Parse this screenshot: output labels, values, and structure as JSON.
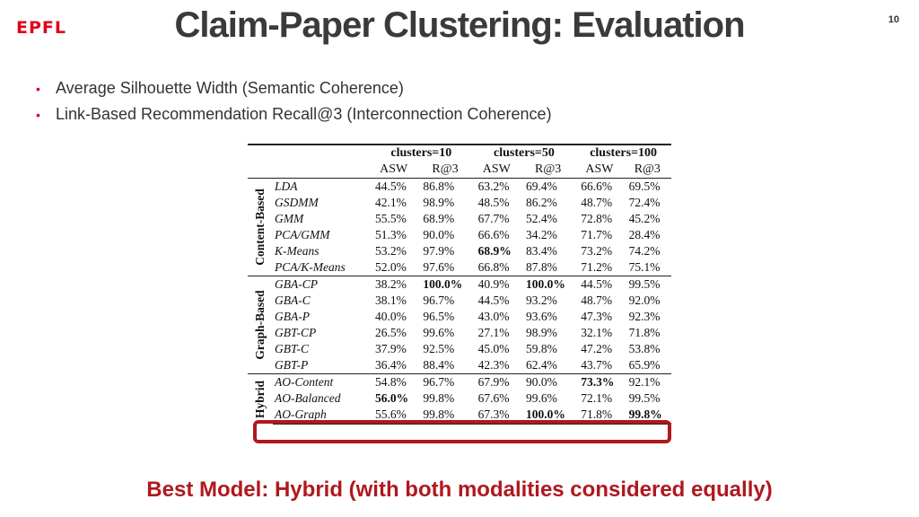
{
  "logo": "EPFL",
  "title": "Claim-Paper Clustering: Evaluation",
  "page_number": "10",
  "bullets": [
    "Average Silhouette Width (Semantic Coherence)",
    "Link-Based Recommendation Recall@3 (Interconnection Coherence)"
  ],
  "table": {
    "cluster_headers": [
      "clusters=10",
      "clusters=50",
      "clusters=100"
    ],
    "sub_headers": [
      "ASW",
      "R@3",
      "ASW",
      "R@3",
      "ASW",
      "R@3"
    ],
    "groups": [
      {
        "name": "Content-Based",
        "rows": [
          {
            "model": "LDA",
            "values": [
              "44.5%",
              "86.8%",
              "63.2%",
              "69.4%",
              "66.6%",
              "69.5%"
            ],
            "bold": []
          },
          {
            "model": "GSDMM",
            "values": [
              "42.1%",
              "98.9%",
              "48.5%",
              "86.2%",
              "48.7%",
              "72.4%"
            ],
            "bold": []
          },
          {
            "model": "GMM",
            "values": [
              "55.5%",
              "68.9%",
              "67.7%",
              "52.4%",
              "72.8%",
              "45.2%"
            ],
            "bold": []
          },
          {
            "model": "PCA/GMM",
            "values": [
              "51.3%",
              "90.0%",
              "66.6%",
              "34.2%",
              "71.7%",
              "28.4%"
            ],
            "bold": []
          },
          {
            "model": "K-Means",
            "values": [
              "53.2%",
              "97.9%",
              "68.9%",
              "83.4%",
              "73.2%",
              "74.2%"
            ],
            "bold": [
              2
            ]
          },
          {
            "model": "PCA/K-Means",
            "values": [
              "52.0%",
              "97.6%",
              "66.8%",
              "87.8%",
              "71.2%",
              "75.1%"
            ],
            "bold": []
          }
        ]
      },
      {
        "name": "Graph-Based",
        "rows": [
          {
            "model": "GBA-CP",
            "values": [
              "38.2%",
              "100.0%",
              "40.9%",
              "100.0%",
              "44.5%",
              "99.5%"
            ],
            "bold": [
              1,
              3
            ]
          },
          {
            "model": "GBA-C",
            "values": [
              "38.1%",
              "96.7%",
              "44.5%",
              "93.2%",
              "48.7%",
              "92.0%"
            ],
            "bold": []
          },
          {
            "model": "GBA-P",
            "values": [
              "40.0%",
              "96.5%",
              "43.0%",
              "93.6%",
              "47.3%",
              "92.3%"
            ],
            "bold": []
          },
          {
            "model": "GBT-CP",
            "values": [
              "26.5%",
              "99.6%",
              "27.1%",
              "98.9%",
              "32.1%",
              "71.8%"
            ],
            "bold": []
          },
          {
            "model": "GBT-C",
            "values": [
              "37.9%",
              "92.5%",
              "45.0%",
              "59.8%",
              "47.2%",
              "53.8%"
            ],
            "bold": []
          },
          {
            "model": "GBT-P",
            "values": [
              "36.4%",
              "88.4%",
              "42.3%",
              "62.4%",
              "43.7%",
              "65.9%"
            ],
            "bold": []
          }
        ]
      },
      {
        "name": "Hybrid",
        "rows": [
          {
            "model": "AO-Content",
            "values": [
              "54.8%",
              "96.7%",
              "67.9%",
              "90.0%",
              "73.3%",
              "92.1%"
            ],
            "bold": [
              4
            ]
          },
          {
            "model": "AO-Balanced",
            "values": [
              "56.0%",
              "99.8%",
              "67.6%",
              "99.6%",
              "72.1%",
              "99.5%"
            ],
            "bold": [
              0
            ]
          },
          {
            "model": "AO-Graph",
            "values": [
              "55.6%",
              "99.8%",
              "67.3%",
              "100.0%",
              "71.8%",
              "99.8%"
            ],
            "bold": [
              3,
              5
            ]
          }
        ]
      }
    ]
  },
  "footer": "Best Model: Hybrid (with both modalities considered equally)",
  "colors": {
    "accent": "#e1001a",
    "highlight": "#b0181e",
    "title": "#3a3a3a"
  }
}
